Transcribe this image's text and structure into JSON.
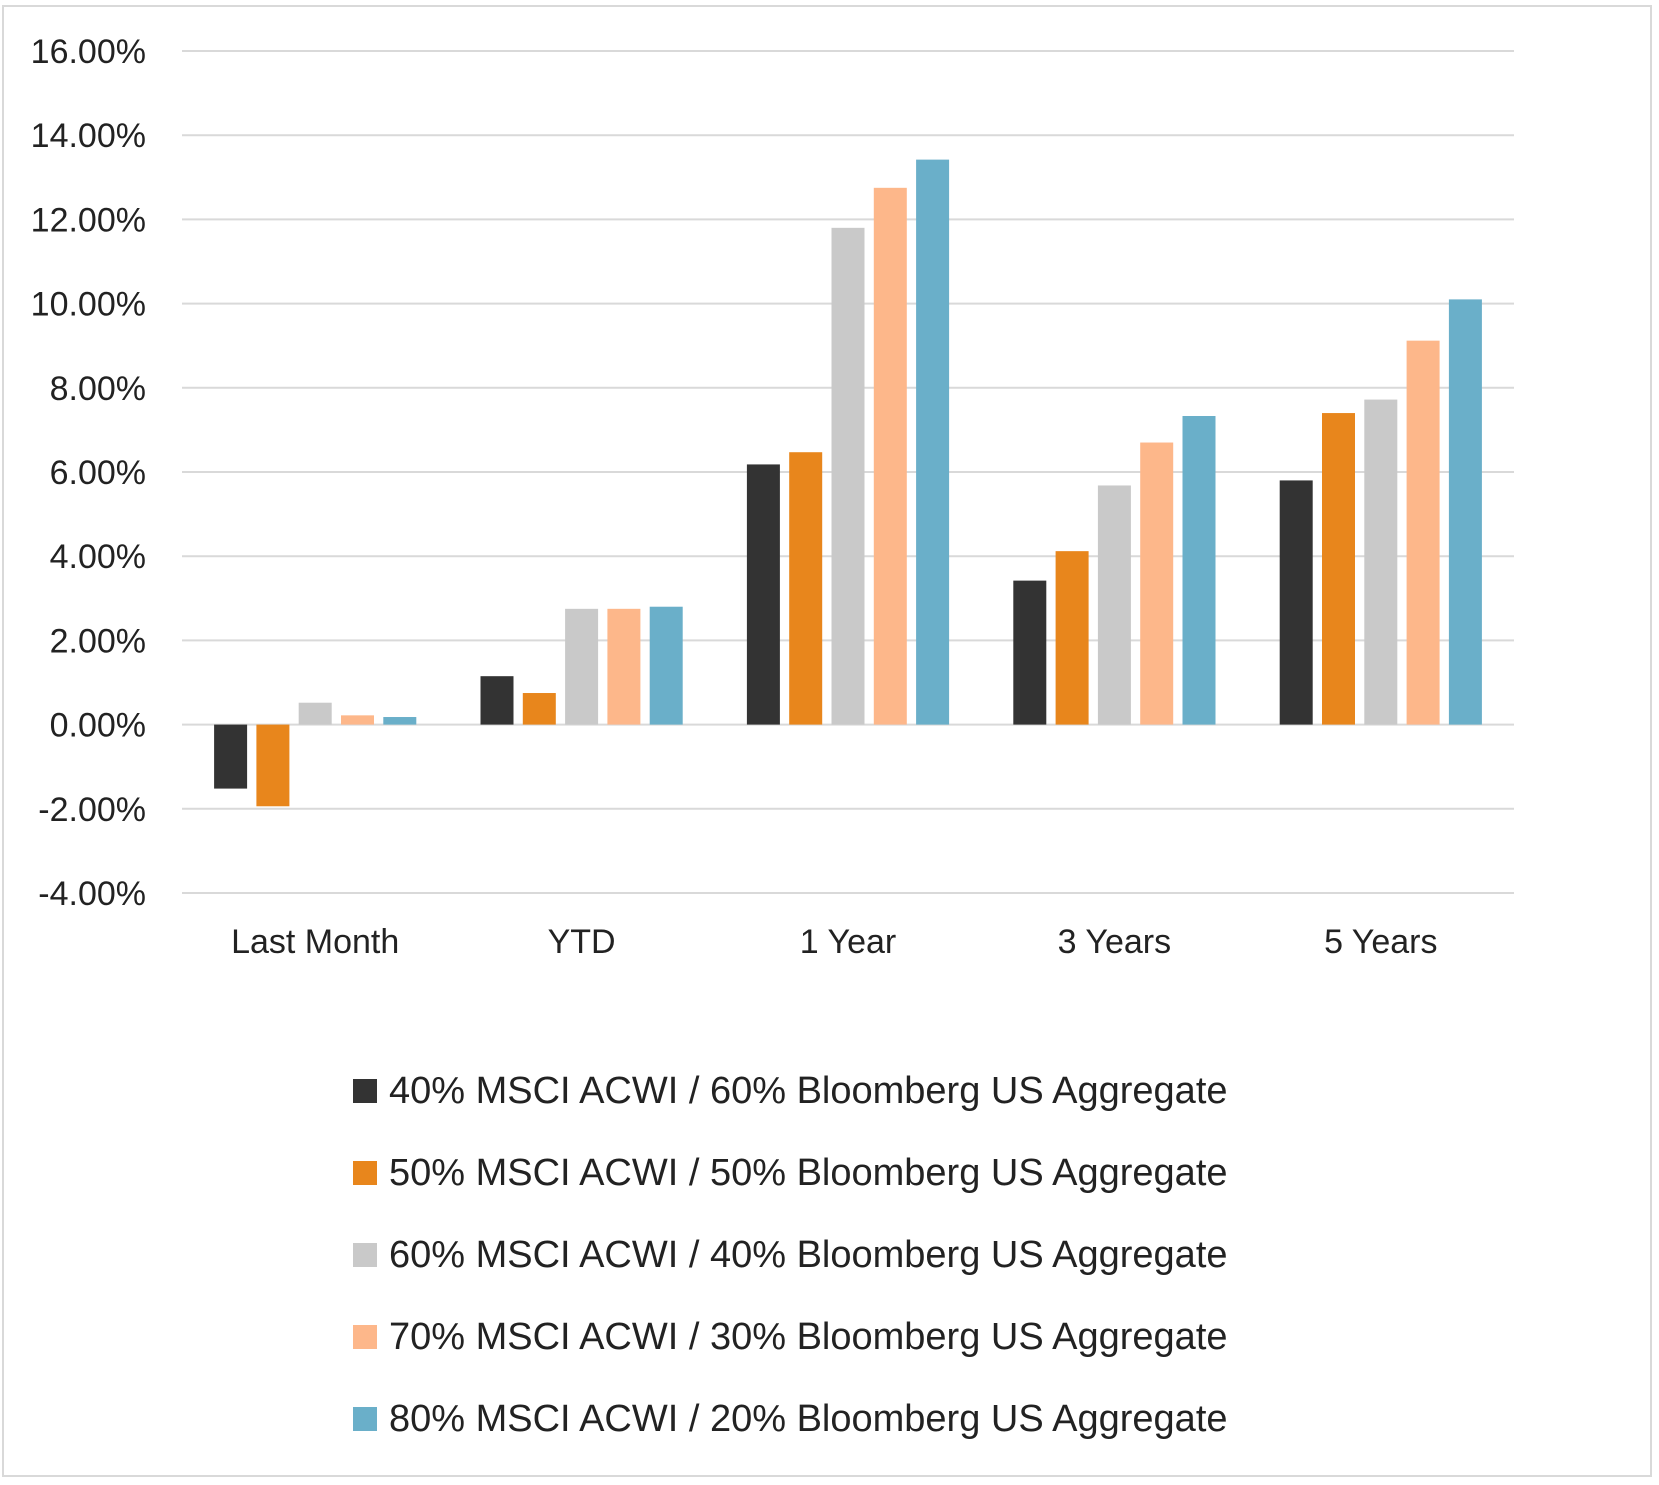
{
  "chart_data": {
    "type": "bar",
    "categories": [
      "Last Month",
      "YTD",
      "1 Year",
      "3 Years",
      "5 Years"
    ],
    "series": [
      {
        "name": "40% MSCI ACWI / 60% Bloomberg US Aggregate",
        "color": "#333333",
        "values": [
          -1.52,
          1.15,
          6.18,
          3.42,
          5.8
        ]
      },
      {
        "name": "50% MSCI ACWI / 50% Bloomberg US Aggregate",
        "color": "#e8861c",
        "values": [
          -1.94,
          0.75,
          6.47,
          4.12,
          7.4
        ]
      },
      {
        "name": "60% MSCI ACWI / 40% Bloomberg US Aggregate",
        "color": "#c9c9c9",
        "values": [
          0.52,
          2.75,
          11.8,
          5.68,
          7.72
        ]
      },
      {
        "name": "70% MSCI ACWI / 30% Bloomberg US Aggregate",
        "color": "#fdb78a",
        "values": [
          0.22,
          2.75,
          12.75,
          6.7,
          9.12
        ]
      },
      {
        "name": "80% MSCI ACWI / 20% Bloomberg US Aggregate",
        "color": "#6aafc9",
        "values": [
          0.18,
          2.8,
          13.42,
          7.33,
          10.1
        ]
      }
    ],
    "yticks": [
      "16.00%",
      "14.00%",
      "12.00%",
      "10.00%",
      "8.00%",
      "6.00%",
      "4.00%",
      "2.00%",
      "0.00%",
      "-2.00%",
      "-4.00%"
    ],
    "ylim": [
      -4,
      16
    ],
    "grid": true,
    "legend_position": "bottom"
  }
}
